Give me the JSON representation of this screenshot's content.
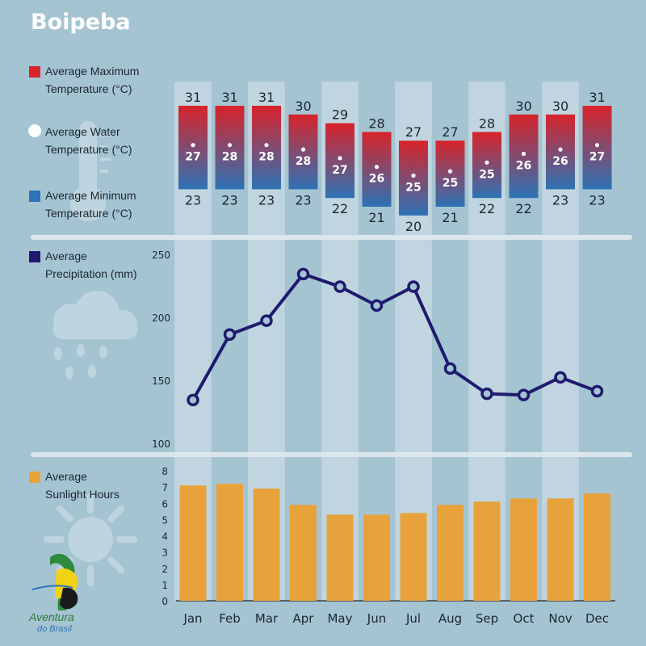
{
  "title": "Boipeba",
  "legend": {
    "max_temp": [
      "Average Maximum",
      "Temperature (°C)"
    ],
    "water_temp": [
      "Average Water",
      "Temperature (°C)"
    ],
    "min_temp": [
      "Average Minimum",
      "Temperature (°C)"
    ],
    "precipitation": [
      "Average",
      "Precipitation (mm)"
    ],
    "sunlight": [
      "Average",
      "Sunlight Hours"
    ]
  },
  "logo": {
    "line1": "Aventura",
    "line2": "do Brasil"
  },
  "colors": {
    "background": "#a5c4d2",
    "column_band": "#c0d5df",
    "max_temp": "#d8232a",
    "min_temp": "#2d73b5",
    "water_temp": "#ffffff",
    "precipitation": "#1f1a6e",
    "sunlight": "#e8a23b",
    "divider": "#dbe7ed"
  },
  "chart_data": [
    {
      "type": "table",
      "name": "temperature",
      "categories": [
        "Jan",
        "Feb",
        "Mar",
        "Apr",
        "May",
        "Jun",
        "Jul",
        "Aug",
        "Sep",
        "Oct",
        "Nov",
        "Dec"
      ],
      "series": [
        {
          "name": "Average Maximum Temperature (°C)",
          "values": [
            31,
            31,
            31,
            30,
            29,
            28,
            27,
            27,
            28,
            30,
            30,
            31
          ]
        },
        {
          "name": "Average Water Temperature (°C)",
          "values": [
            27,
            28,
            28,
            28,
            27,
            26,
            25,
            25,
            25,
            26,
            26,
            27
          ]
        },
        {
          "name": "Average Minimum Temperature (°C)",
          "values": [
            23,
            23,
            23,
            23,
            22,
            21,
            20,
            21,
            22,
            22,
            23,
            23
          ]
        }
      ]
    },
    {
      "type": "line",
      "name": "precipitation",
      "categories": [
        "Jan",
        "Feb",
        "Mar",
        "Apr",
        "May",
        "Jun",
        "Jul",
        "Aug",
        "Sep",
        "Oct",
        "Nov",
        "Dec"
      ],
      "series": [
        {
          "name": "Average Precipitation (mm)",
          "values": [
            135,
            187,
            198,
            235,
            225,
            210,
            225,
            160,
            140,
            139,
            153,
            142
          ]
        }
      ],
      "yticks": [
        100,
        150,
        200,
        250
      ],
      "ylim": [
        100,
        250
      ]
    },
    {
      "type": "bar",
      "name": "sunlight",
      "categories": [
        "Jan",
        "Feb",
        "Mar",
        "Apr",
        "May",
        "Jun",
        "Jul",
        "Aug",
        "Sep",
        "Oct",
        "Nov",
        "Dec"
      ],
      "series": [
        {
          "name": "Average Sunlight Hours",
          "values": [
            7.1,
            7.2,
            6.9,
            5.9,
            5.3,
            5.3,
            5.4,
            5.9,
            6.1,
            6.3,
            6.3,
            6.6
          ]
        }
      ],
      "yticks": [
        0,
        1,
        2,
        3,
        4,
        5,
        6,
        7,
        8
      ],
      "ylim": [
        0,
        8
      ]
    }
  ]
}
